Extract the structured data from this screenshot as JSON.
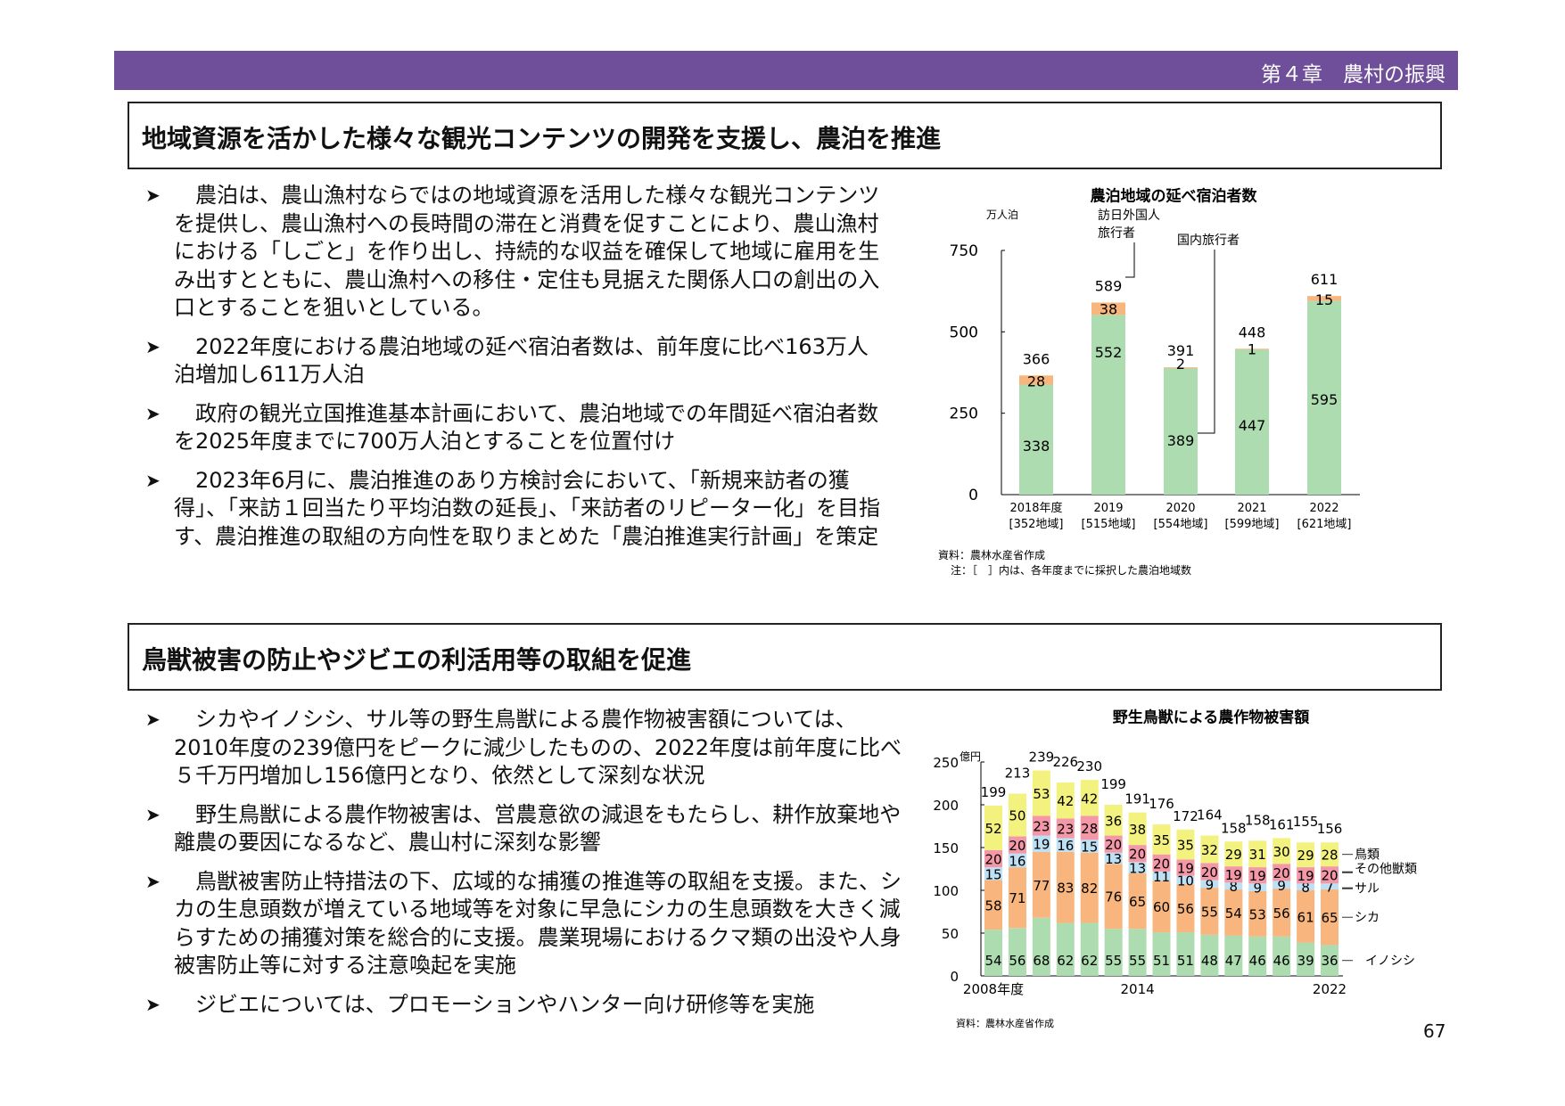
{
  "header": {
    "chapter": "第４章　農村の振興"
  },
  "section1": {
    "title": "地域資源を活かした様々な観光コンテンツの開発を支援し、農泊を推進",
    "bullets": [
      "農泊は、農山漁村ならではの地域資源を活用した様々な観光コンテンツを提供し、農山漁村への長時間の滞在と消費を促すことにより、農山漁村における「しごと」を作り出し、持続的な収益を確保して地域に雇用を生み出すとともに、農山漁村への移住・定住も見据えた関係人口の創出の入口とすることを狙いとしている。",
      "2022年度における農泊地域の延べ宿泊者数は、前年度に比べ163万人泊増加し611万人泊",
      "政府の観光立国推進基本計画において、農泊地域での年間延べ宿泊者数を2025年度までに700万人泊とすることを位置付け",
      "2023年6月に、農泊推進のあり方検討会において、「新規来訪者の獲得」、「来訪１回当たり平均泊数の延長」、「来訪者のリピーター化」を目指す、農泊推進の取組の方向性を取りまとめた「農泊推進実行計画」を策定"
    ]
  },
  "section2": {
    "title": "鳥獣被害の防止やジビエの利活用等の取組を促進",
    "bullets": [
      "シカやイノシシ、サル等の野生鳥獣による農作物被害額については、2010年度の239億円をピークに減少したものの、2022年度は前年度に比べ５千万円増加し156億円となり、依然として深刻な状況",
      "野生鳥獣による農作物被害は、営農意欲の減退をもたらし、耕作放棄地や離農の要因になるなど、農山村に深刻な影響",
      "鳥獣被害防止特措法の下、広域的な捕獲の推進等の取組を支援。また、シカの生息頭数が増えている地域等を対象に早急にシカの生息頭数を大きく減らすための捕獲対策を総合的に支援。農業現場におけるクマ類の出没や人身被害防止等に対する注意喚起を実施",
      "ジビエについては、プロモーションやハンター向け研修等を実施"
    ]
  },
  "bullet_icon": "arrowhead-bullet-icon",
  "page_number": "67",
  "chart_data": [
    {
      "type": "bar",
      "stacked": true,
      "title": "農泊地域の延べ宿泊者数",
      "ylabel": "万人泊",
      "ylim": [
        0,
        750
      ],
      "yticks": [
        0,
        250,
        500,
        750
      ],
      "categories": [
        "2018年度",
        "2019",
        "2020",
        "2021",
        "2022"
      ],
      "category_notes": [
        "[352地域]",
        "[515地域]",
        "[554地域]",
        "[599地域]",
        "[621地域]"
      ],
      "series": [
        {
          "name": "国内旅行者",
          "values": [
            338,
            552,
            389,
            447,
            595
          ],
          "color": "#acdcb0"
        },
        {
          "name": "訪日外国人旅行者",
          "values": [
            28,
            38,
            2,
            1,
            15
          ],
          "color": "#f8b67e"
        }
      ],
      "totals": [
        366,
        589,
        391,
        448,
        611
      ],
      "legend_labels": {
        "foreign_line1": "訪日外国人",
        "foreign_line2": "旅行者",
        "domestic": "国内旅行者"
      },
      "source": "資料：農林水産省作成",
      "note": "注：［　］内は、各年度までに採択した農泊地域数"
    },
    {
      "type": "bar",
      "stacked": true,
      "title": "野生鳥獣による農作物被害額",
      "ylabel": "億円",
      "ylim": [
        0,
        250
      ],
      "yticks": [
        0,
        50,
        100,
        150,
        200,
        250
      ],
      "x": [
        2008,
        2009,
        2010,
        2011,
        2012,
        2013,
        2014,
        2015,
        2016,
        2017,
        2018,
        2019,
        2020,
        2021,
        2022
      ],
      "xtick_labels": [
        {
          "index": 0,
          "label": "2008年度"
        },
        {
          "index": 6,
          "label": "2014"
        },
        {
          "index": 14,
          "label": "2022"
        }
      ],
      "series": [
        {
          "name": "イノシシ",
          "values": [
            54,
            56,
            68,
            62,
            62,
            55,
            55,
            51,
            51,
            48,
            47,
            46,
            46,
            39,
            36
          ],
          "color": "#acdcb0"
        },
        {
          "name": "シカ",
          "values": [
            58,
            71,
            77,
            83,
            82,
            76,
            65,
            60,
            56,
            55,
            54,
            53,
            56,
            61,
            65
          ],
          "color": "#f8b67e"
        },
        {
          "name": "サル",
          "values": [
            15,
            16,
            19,
            16,
            15,
            13,
            13,
            11,
            10,
            9,
            8,
            9,
            9,
            8,
            7
          ],
          "color": "#bde0f5"
        },
        {
          "name": "その他獣類",
          "values": [
            20,
            20,
            23,
            23,
            28,
            20,
            20,
            20,
            19,
            20,
            19,
            19,
            20,
            19,
            20
          ],
          "color": "#f497a6"
        },
        {
          "name": "鳥類",
          "values": [
            52,
            50,
            53,
            42,
            42,
            36,
            38,
            35,
            35,
            32,
            29,
            31,
            30,
            29,
            28
          ],
          "color": "#f3f27e"
        }
      ],
      "totals": [
        199,
        213,
        239,
        226,
        230,
        199,
        191,
        176,
        172,
        164,
        158,
        158,
        161,
        155,
        156
      ],
      "source": "資料：農林水産省作成"
    }
  ]
}
